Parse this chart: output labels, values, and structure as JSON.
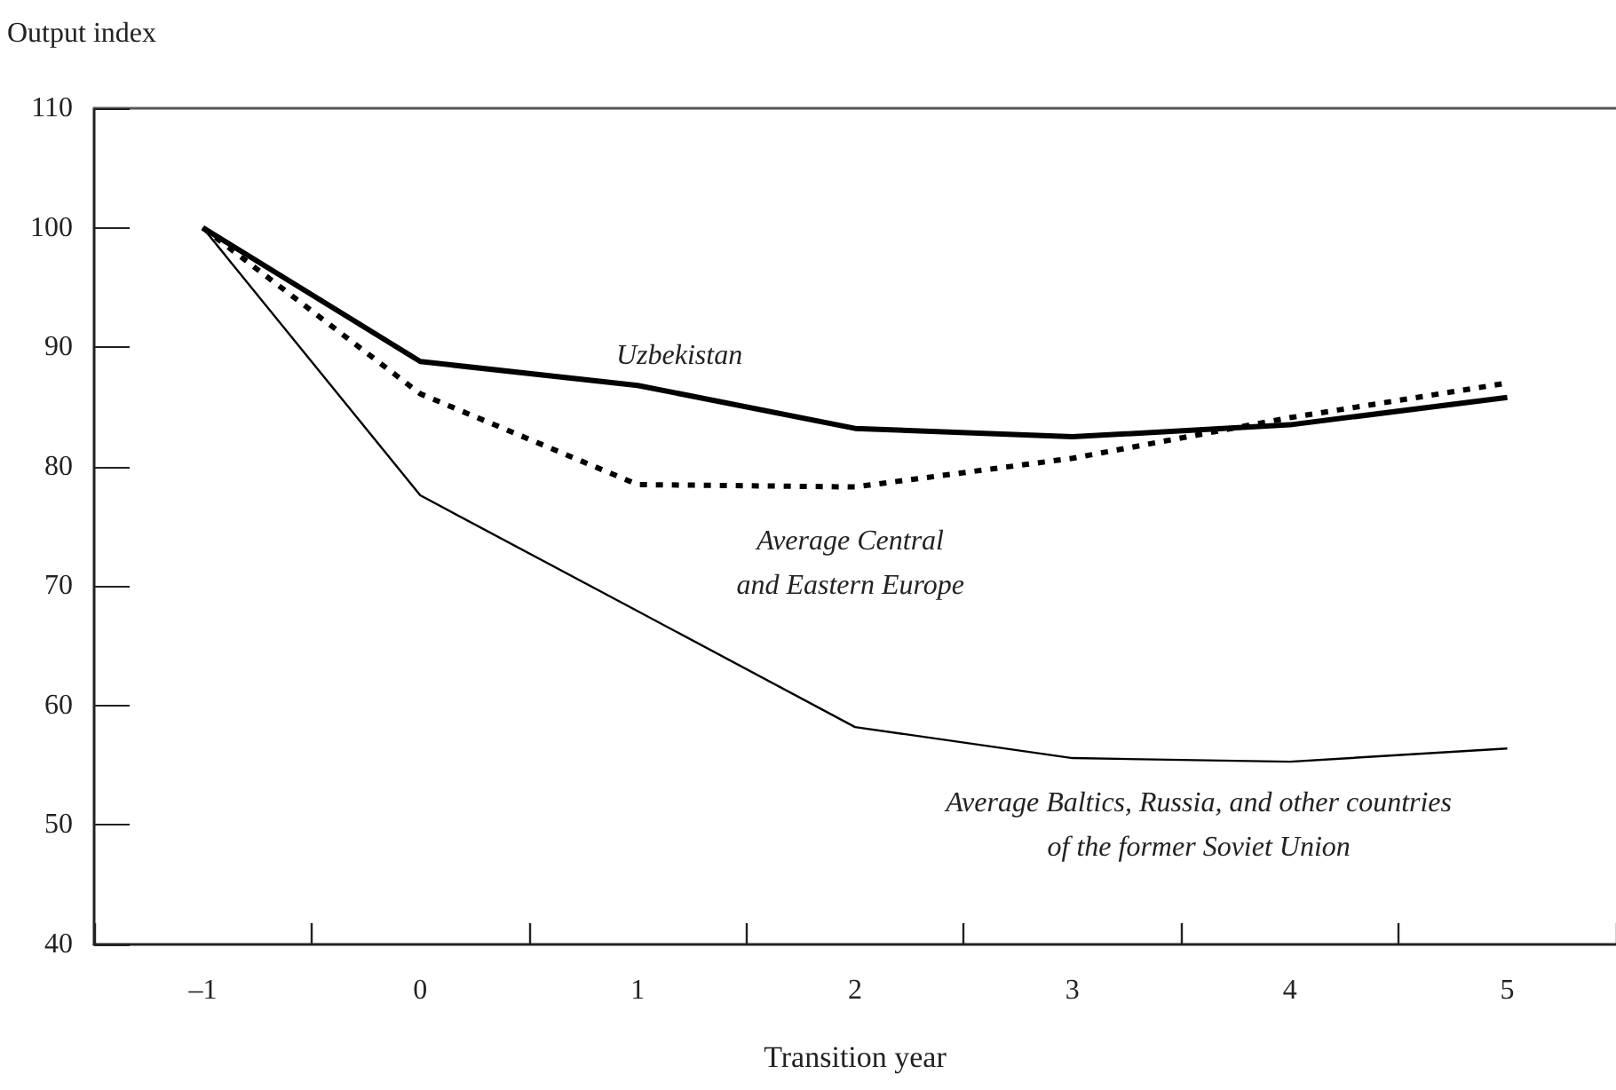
{
  "chart_data": {
    "type": "line",
    "xlabel": "Transition year",
    "ylabel": "Output index",
    "categories": [
      "–1",
      "0",
      "1",
      "2",
      "3",
      "4",
      "5"
    ],
    "series": [
      {
        "name": "Uzbekistan",
        "color": "#000000",
        "line_style": "solid",
        "values": [
          100,
          88.8,
          86.8,
          83.2,
          82.5,
          83.5,
          85.8
        ]
      },
      {
        "name": "Average Central\nand Eastern Europe",
        "color": "#000000",
        "line_style": "dotted",
        "values": [
          100,
          86.1,
          78.5,
          78.3,
          80.7,
          84.1,
          87.0
        ]
      },
      {
        "name": "Average Baltics, Russia, and other countries\nof the former Soviet Union",
        "color": "#000000",
        "line_style": "solid",
        "values": [
          100,
          77.6,
          67.9,
          58.2,
          55.6,
          55.3,
          56.4
        ]
      }
    ],
    "ylim": [
      40,
      110
    ],
    "yticks": [
      40,
      50,
      60,
      70,
      80,
      90,
      100,
      110
    ],
    "grid": false,
    "legend": false,
    "marker": "none"
  }
}
